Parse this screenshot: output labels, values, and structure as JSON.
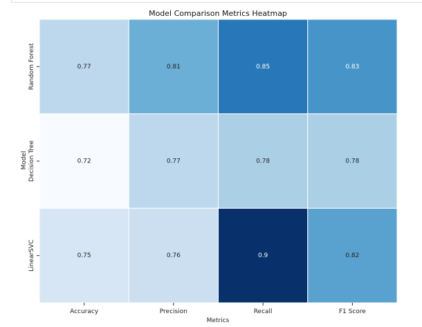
{
  "chart_data": {
    "type": "heatmap",
    "title": "Model Comparison Metrics Heatmap",
    "xlabel": "Metrics",
    "ylabel": "Model",
    "x_categories": [
      "Accuracy",
      "Precision",
      "Recall",
      "F1 Score"
    ],
    "y_categories": [
      "Random Forest",
      "Decision Tree",
      "LinearSVC"
    ],
    "values": [
      [
        0.77,
        0.81,
        0.85,
        0.83
      ],
      [
        0.72,
        0.77,
        0.78,
        0.78
      ],
      [
        0.75,
        0.76,
        0.9,
        0.82
      ]
    ],
    "cell_labels": [
      [
        "0.77",
        "0.81",
        "0.85",
        "0.83"
      ],
      [
        "0.72",
        "0.77",
        "0.78",
        "0.78"
      ],
      [
        "0.75",
        "0.76",
        "0.9",
        "0.82"
      ]
    ],
    "colorscale": "Blues",
    "vmin": 0.72,
    "vmax": 0.9,
    "grid": false,
    "legend": "none"
  }
}
